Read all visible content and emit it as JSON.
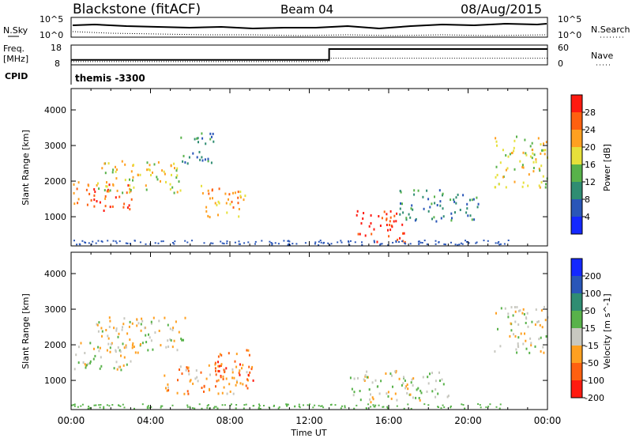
{
  "header": {
    "station": "Blackstone (fitACF)",
    "beam": "Beam 04",
    "date": "08/Aug/2015"
  },
  "chart_data": [
    {
      "type": "line",
      "panel": "noise",
      "left_label": "N.Sky",
      "right_label": "N.Search",
      "left_ticks": [
        "10^5",
        "10^0"
      ],
      "right_ticks": [
        "10^5",
        "10^0"
      ]
    },
    {
      "type": "line",
      "panel": "frequency",
      "left_label_1": "Freq.",
      "left_label_2": "[MHz]",
      "right_label": "Nave",
      "left_ticks": [
        "18",
        "8"
      ],
      "right_ticks": [
        "60",
        "0"
      ],
      "freq_series": {
        "x": [
          0,
          13,
          13,
          24
        ],
        "y": [
          10.5,
          10.5,
          16,
          16
        ]
      },
      "nave_series": {
        "x": [
          0,
          13,
          13,
          24
        ],
        "y": [
          10,
          10,
          20,
          20
        ]
      }
    },
    {
      "type": "text",
      "panel": "cpid",
      "label": "CPID",
      "value": "themis -3300"
    },
    {
      "type": "heatmap",
      "panel": "power",
      "ylabel": "Slant Range [km]",
      "yticks": [
        "1000",
        "2000",
        "3000",
        "4000"
      ],
      "ylim": [
        180,
        4600
      ],
      "colorbar_label": "Power [dB]",
      "colorbar_ticks": [
        "4",
        "8",
        "12",
        "16",
        "20",
        "24",
        "28"
      ],
      "colors": [
        "#1428ff",
        "#2a56b8",
        "#2f8d72",
        "#58b24a",
        "#e6e03a",
        "#ffa020",
        "#ff6010",
        "#ff1a10"
      ],
      "regions": [
        {
          "t": [
            0.1,
            3.2
          ],
          "r": [
            1200,
            2000
          ],
          "level": 6
        },
        {
          "t": [
            1.2,
            5.5
          ],
          "r": [
            1700,
            2600
          ],
          "level": 4
        },
        {
          "t": [
            5.5,
            7.2
          ],
          "r": [
            2500,
            3400
          ],
          "level": 2
        },
        {
          "t": [
            6.5,
            8.8
          ],
          "r": [
            1000,
            1900
          ],
          "level": 5
        },
        {
          "t": [
            14.3,
            16.8
          ],
          "r": [
            280,
            1200
          ],
          "level": 7
        },
        {
          "t": [
            16.5,
            20.5
          ],
          "r": [
            900,
            1800
          ],
          "level": 2
        },
        {
          "t": [
            21.3,
            24
          ],
          "r": [
            1800,
            3300
          ],
          "level": 4
        }
      ]
    },
    {
      "type": "heatmap",
      "panel": "velocity",
      "ylabel": "Slant Range [km]",
      "yticks": [
        "1000",
        "2000",
        "3000",
        "4000"
      ],
      "ylim": [
        180,
        4600
      ],
      "xticks": [
        "00:00",
        "04:00",
        "08:00",
        "12:00",
        "16:00",
        "20:00",
        "00:00"
      ],
      "xlabel": "Time UT",
      "colorbar_label": "Velocity [m s^-1]",
      "colorbar_ticks": [
        "200",
        "100",
        "50",
        "15",
        "-15",
        "-50",
        "-100",
        "-200"
      ],
      "colors": [
        "#1428ff",
        "#2a56b8",
        "#2f8d72",
        "#58b24a",
        "#c8c8c0",
        "#ffa020",
        "#ff6010",
        "#ff1a10"
      ],
      "regions": [
        {
          "t": [
            0.1,
            3.2
          ],
          "r": [
            1300,
            2100
          ],
          "level": 4
        },
        {
          "t": [
            1.2,
            5.8
          ],
          "r": [
            1800,
            2800
          ],
          "level": 4
        },
        {
          "t": [
            4.5,
            9.2
          ],
          "r": [
            650,
            1500
          ],
          "level": 5
        },
        {
          "t": [
            7.2,
            9.2
          ],
          "r": [
            1000,
            1900
          ],
          "level": 6
        },
        {
          "t": [
            14.0,
            19.0
          ],
          "r": [
            400,
            1300
          ],
          "level": 4
        },
        {
          "t": [
            21.3,
            24
          ],
          "r": [
            1800,
            3100
          ],
          "level": 4
        }
      ]
    }
  ]
}
